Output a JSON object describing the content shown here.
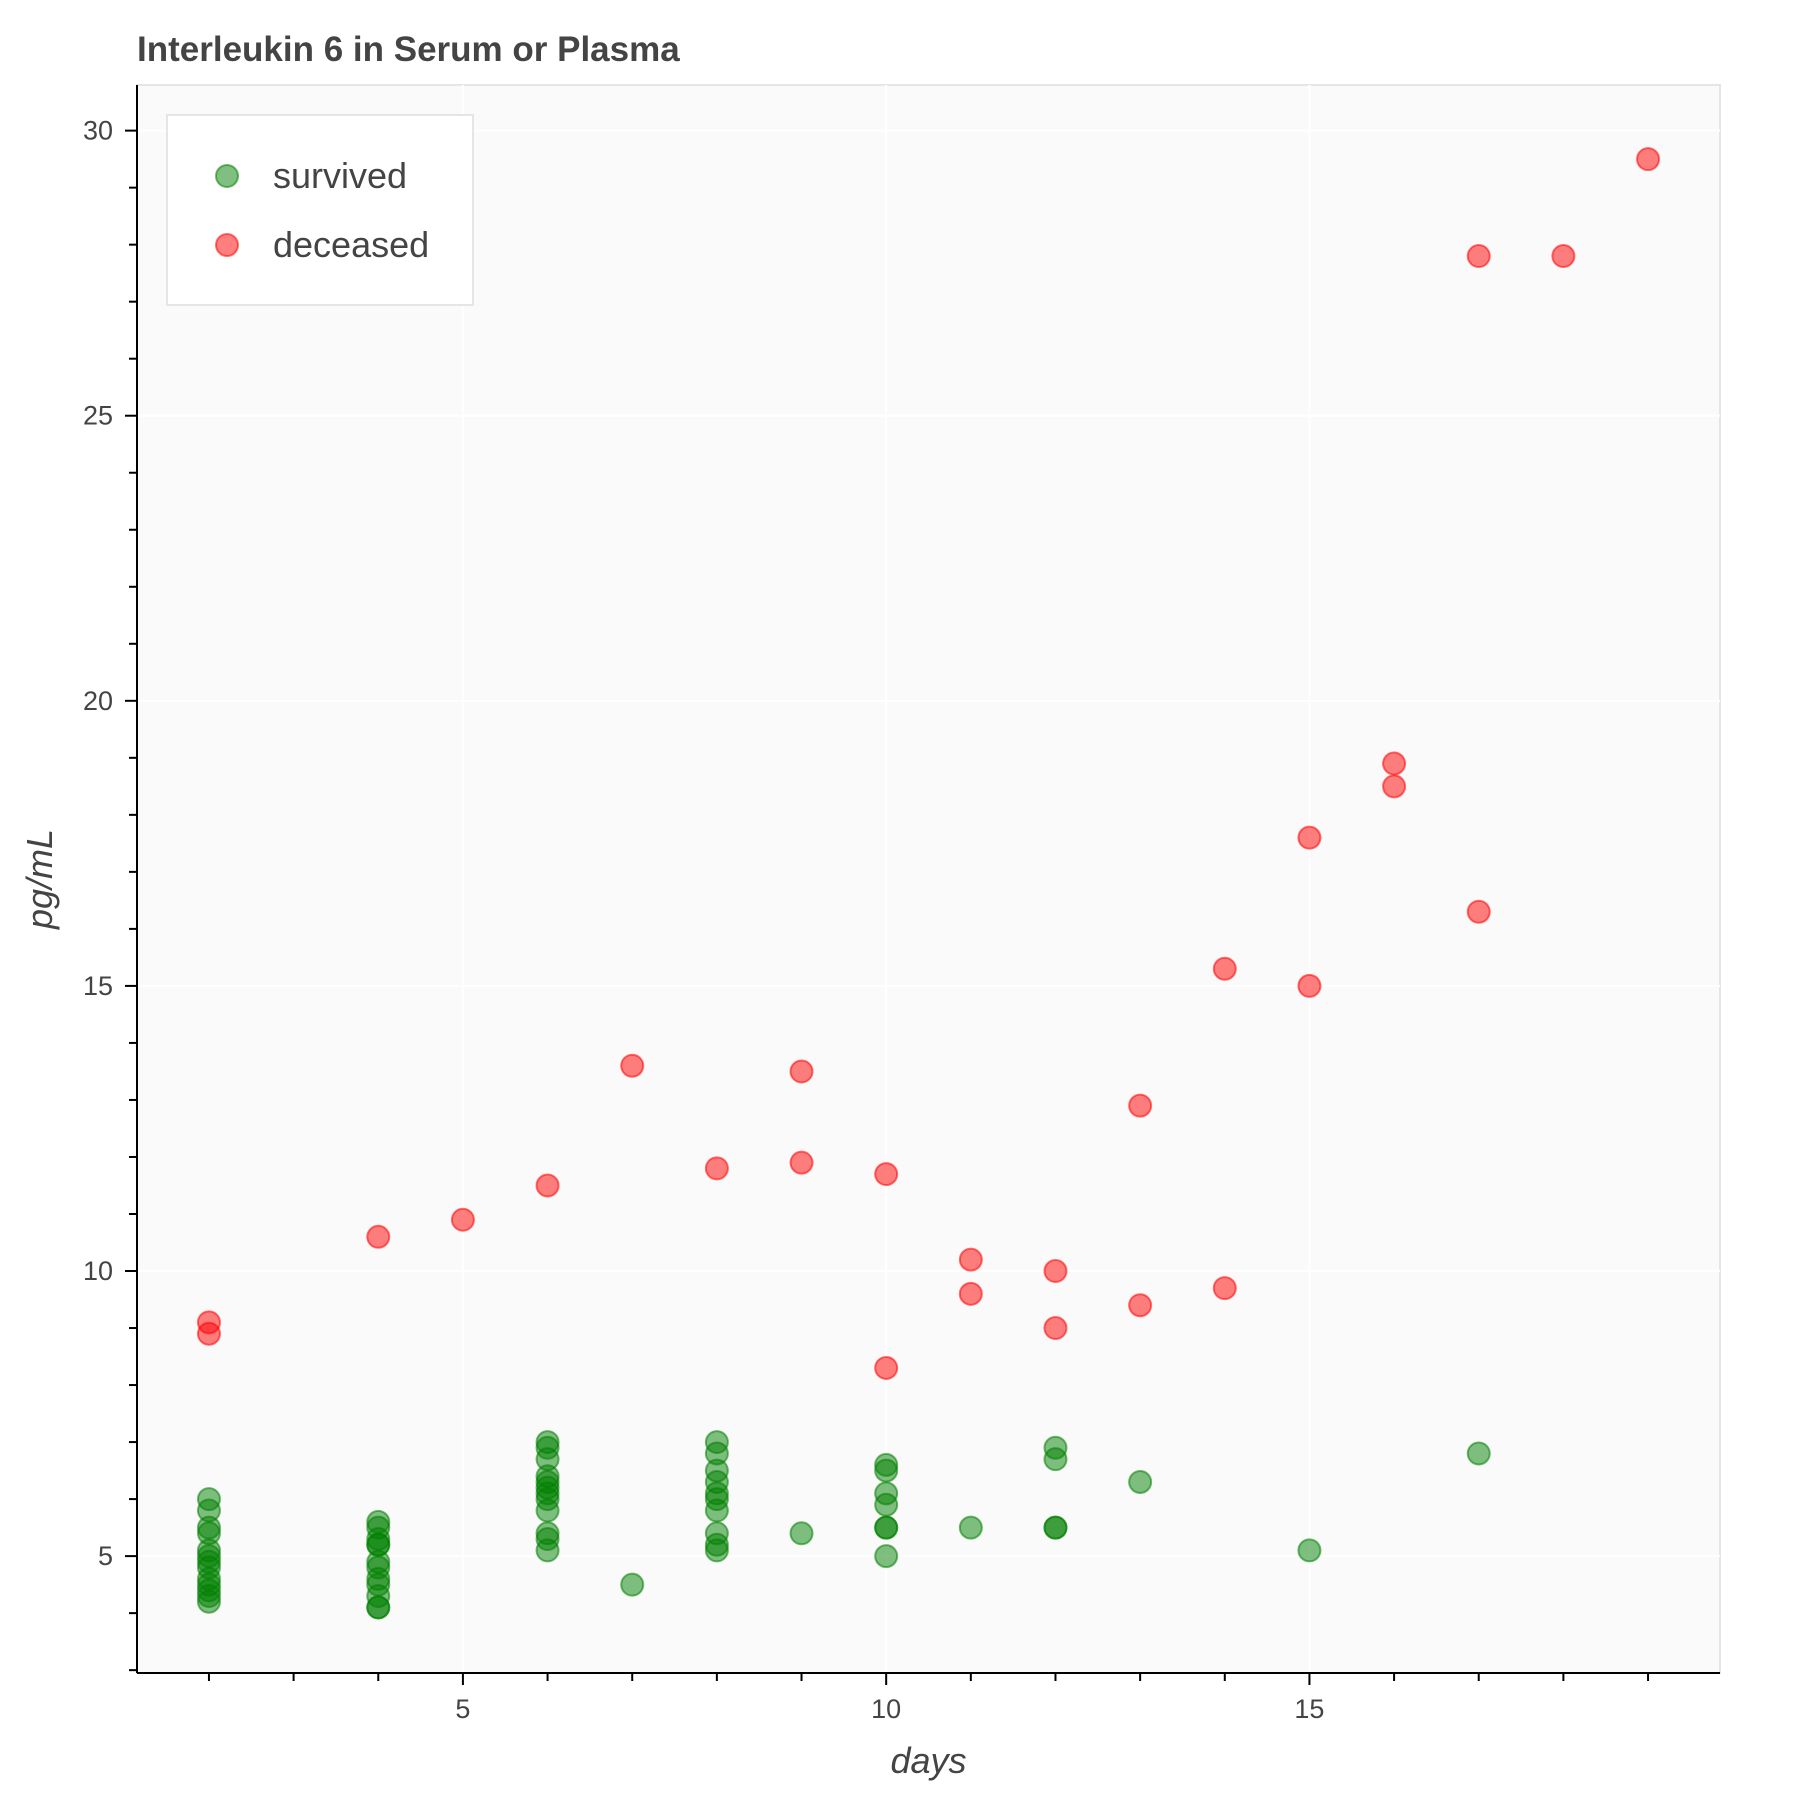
{
  "chart_data": {
    "type": "scatter",
    "title": "Interleukin 6 in Serum or Plasma",
    "xlabel": "days",
    "ylabel": "pg/mL",
    "xlim": [
      1.15,
      19.85
    ],
    "ylim": [
      2.95,
      30.8
    ],
    "x_ticks": [
      5,
      10,
      15
    ],
    "y_ticks": [
      5,
      10,
      15,
      20,
      25,
      30
    ],
    "x_minor_ticks": [
      2,
      3,
      4,
      6,
      7,
      8,
      9,
      11,
      12,
      13,
      14,
      16,
      17,
      18,
      19
    ],
    "y_minor_ticks": [
      3,
      4,
      6,
      7,
      8,
      9,
      11,
      12,
      13,
      14,
      16,
      17,
      18,
      19,
      21,
      22,
      23,
      24,
      26,
      27,
      28,
      29
    ],
    "grid": true,
    "legend_position": "top-left",
    "series": [
      {
        "name": "survived",
        "color": "#008000",
        "points": [
          [
            2,
            6.0
          ],
          [
            2,
            5.8
          ],
          [
            2,
            5.5
          ],
          [
            2,
            5.4
          ],
          [
            2,
            5.1
          ],
          [
            2,
            5.0
          ],
          [
            2,
            4.9
          ],
          [
            2,
            4.8
          ],
          [
            2,
            4.6
          ],
          [
            2,
            4.5
          ],
          [
            2,
            4.4
          ],
          [
            2,
            4.3
          ],
          [
            2,
            4.2
          ],
          [
            4,
            5.6
          ],
          [
            4,
            5.5
          ],
          [
            4,
            5.3
          ],
          [
            4,
            5.2
          ],
          [
            4,
            5.2
          ],
          [
            4,
            4.9
          ],
          [
            4,
            4.8
          ],
          [
            4,
            4.6
          ],
          [
            4,
            4.5
          ],
          [
            4,
            4.3
          ],
          [
            4,
            4.1
          ],
          [
            4,
            4.1
          ],
          [
            6,
            7.0
          ],
          [
            6,
            6.9
          ],
          [
            6,
            6.7
          ],
          [
            6,
            6.4
          ],
          [
            6,
            6.3
          ],
          [
            6,
            6.2
          ],
          [
            6,
            6.1
          ],
          [
            6,
            6.0
          ],
          [
            6,
            5.8
          ],
          [
            6,
            5.4
          ],
          [
            6,
            5.3
          ],
          [
            6,
            5.1
          ],
          [
            7,
            4.5
          ],
          [
            8,
            7.0
          ],
          [
            8,
            6.8
          ],
          [
            8,
            6.5
          ],
          [
            8,
            6.3
          ],
          [
            8,
            6.1
          ],
          [
            8,
            6.0
          ],
          [
            8,
            5.8
          ],
          [
            8,
            5.4
          ],
          [
            8,
            5.2
          ],
          [
            8,
            5.1
          ],
          [
            9,
            5.4
          ],
          [
            10,
            6.6
          ],
          [
            10,
            6.5
          ],
          [
            10,
            6.1
          ],
          [
            10,
            5.9
          ],
          [
            10,
            5.5
          ],
          [
            10,
            5.5
          ],
          [
            10,
            5.0
          ],
          [
            11,
            5.5
          ],
          [
            12,
            6.9
          ],
          [
            12,
            6.7
          ],
          [
            12,
            5.5
          ],
          [
            12,
            5.5
          ],
          [
            13,
            6.3
          ],
          [
            15,
            5.1
          ],
          [
            17,
            6.8
          ]
        ]
      },
      {
        "name": "deceased",
        "color": "#ff0000",
        "points": [
          [
            2,
            9.1
          ],
          [
            2,
            8.9
          ],
          [
            4,
            10.6
          ],
          [
            5,
            10.9
          ],
          [
            6,
            11.5
          ],
          [
            7,
            13.6
          ],
          [
            8,
            11.8
          ],
          [
            9,
            13.5
          ],
          [
            9,
            11.9
          ],
          [
            10,
            11.7
          ],
          [
            10,
            8.3
          ],
          [
            11,
            10.2
          ],
          [
            11,
            9.6
          ],
          [
            12,
            10.0
          ],
          [
            12,
            9.0
          ],
          [
            13,
            12.9
          ],
          [
            13,
            9.4
          ],
          [
            14,
            15.3
          ],
          [
            14,
            9.7
          ],
          [
            15,
            17.6
          ],
          [
            15,
            15.0
          ],
          [
            16,
            18.9
          ],
          [
            16,
            18.5
          ],
          [
            17,
            27.8
          ],
          [
            17,
            16.3
          ],
          [
            18,
            27.8
          ],
          [
            19,
            29.5
          ]
        ]
      }
    ]
  }
}
